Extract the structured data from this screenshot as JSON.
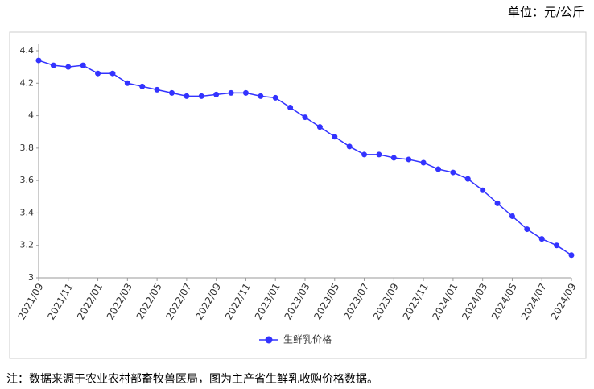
{
  "unit": "单位：元/公斤",
  "chart_data": {
    "type": "line",
    "categories": [
      "2021/09",
      null,
      "2021/11",
      null,
      "2022/01",
      null,
      "2022/03",
      null,
      "2022/05",
      null,
      "2022/07",
      null,
      "2022/09",
      null,
      "2022/11",
      null,
      "2023/01",
      null,
      "2023/03",
      null,
      "2023/05",
      null,
      "2023/07",
      null,
      "2023/09",
      null,
      "2023/11",
      null,
      "2024/01",
      null,
      "2024/03",
      null,
      "2024/05",
      null,
      "2024/07",
      null,
      "2024/09"
    ],
    "series": [
      {
        "name": "生鲜乳价格",
        "color": "#3333ff",
        "values": [
          4.34,
          4.31,
          4.3,
          4.31,
          4.26,
          4.26,
          4.2,
          4.18,
          4.16,
          4.14,
          4.12,
          4.12,
          4.13,
          4.14,
          4.14,
          4.12,
          4.11,
          4.05,
          3.99,
          3.93,
          3.87,
          3.81,
          3.76,
          3.76,
          3.74,
          3.73,
          3.71,
          3.67,
          3.65,
          3.61,
          3.54,
          3.46,
          3.38,
          3.3,
          3.24,
          3.2,
          3.14
        ]
      }
    ],
    "ylim": [
      3,
      4.4
    ],
    "yticks": [
      3,
      3.2,
      3.4,
      3.6,
      3.8,
      4,
      4.2,
      4.4
    ],
    "grid": false,
    "legend": "bottom"
  },
  "note": "注：数据来源于农业农村部畜牧兽医局，图为主产省生鲜乳收购价格数据。"
}
